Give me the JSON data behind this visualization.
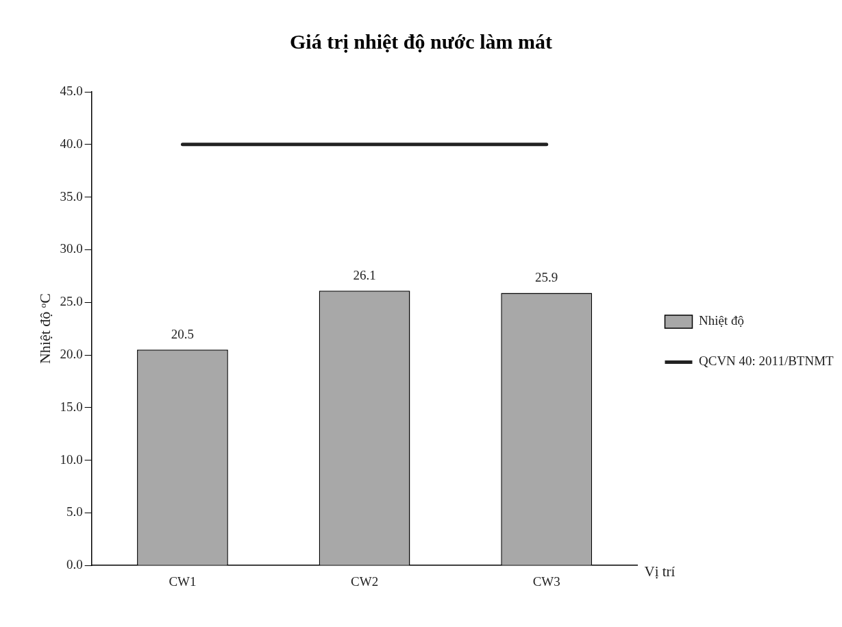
{
  "chart_data": {
    "type": "bar",
    "title": "Giá trị nhiệt độ nước làm mát",
    "xlabel": "Vị trí",
    "ylabel": "Nhiệt độ ᵒC",
    "categories": [
      "CW1",
      "CW2",
      "CW3"
    ],
    "series": [
      {
        "name": "Nhiệt độ",
        "color": "#a8a8a8",
        "values": [
          20.5,
          26.1,
          25.9
        ],
        "value_labels": [
          "20.5",
          "26.1",
          "25.9"
        ]
      },
      {
        "name": "QCVN 40: 2011/BTNMT",
        "type": "line",
        "color": "#222222",
        "values": [
          40,
          40,
          40
        ]
      }
    ],
    "ylim": [
      0,
      45
    ],
    "yticks": [
      {
        "value": 0,
        "label": "0.0"
      },
      {
        "value": 5,
        "label": "5.0"
      },
      {
        "value": 10,
        "label": "10.0"
      },
      {
        "value": 15,
        "label": "15.0"
      },
      {
        "value": 20,
        "label": "20.0"
      },
      {
        "value": 25,
        "label": "25.0"
      },
      {
        "value": 30,
        "label": "30.0"
      },
      {
        "value": 35,
        "label": "35.0"
      },
      {
        "value": 40,
        "label": "40.0"
      },
      {
        "value": 45,
        "label": "45.0"
      }
    ],
    "grid": false,
    "legend": "right",
    "marker": "none"
  }
}
